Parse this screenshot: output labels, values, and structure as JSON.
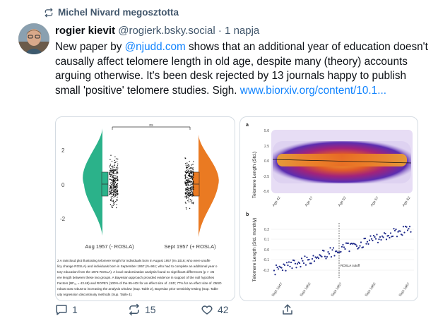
{
  "repost": {
    "icon": "repost-icon",
    "text": "Michel Nivard megosztotta"
  },
  "post": {
    "author_name": "rogier kievit",
    "handle": "@rogierk.bsky.social",
    "separator": "·",
    "time": "1 napja",
    "text_1": "New paper by ",
    "mention": "@njudd.com",
    "text_2": " shows that an additional year of education doesn't causally affect telomere length in old age, despite many (theory) accounts arguing otherwise. It's been desk rejected by 13 journals happy to publish small 'positive' telomere studies. Sigh. ",
    "link": "www.biorxiv.org/content/10.1..."
  },
  "left_figure": {
    "y_ticks": [
      "2",
      "0",
      "-2"
    ],
    "group_labels": [
      "Aug 1957 (- ROSLA)",
      "Sept 1957 (+ ROSLA)"
    ],
    "significance": "ns",
    "colors": {
      "left": "#2bb28a",
      "right": "#ea7a22"
    },
    "caption_lines": [
      "2 A raincloud plot illustrating telomere length for individuals born in August 1957 (N=1016; who were unaffe",
      "licy change ROSLA) and individuals born in September 1957 (N=961; who had to complete an additional year o",
      "tory education from the 1973 ROSLA). A local randomization analysis found no significant differences (p > .05",
      "ere length between these two groups. A Bayesian approach provided evidence in support of the null hypothes",
      "Factors (BF₀₁ = 43.48) and ROPE's (100% of the 95-HDI for an effect size of .1SD; 77% for an effect size of .05SD",
      "robust was robust to increasing the analysis window (Sup. Table 2), Bayesian prior sensitivity testing (Sup. Table",
      "uity regression discontinuity methods (Sup. Table 4)."
    ]
  },
  "right_figure": {
    "panel_a": {
      "label": "a",
      "ylabel": "Telomere Length (Std.)",
      "y_ticks": [
        "5.0",
        "2.5",
        "0.0",
        "-2.5",
        "-5.0"
      ],
      "x_ticks": [
        "Age 42",
        "Age 47",
        "Age 52",
        "Age 57",
        "Age 62"
      ]
    },
    "panel_b": {
      "label": "b",
      "ylabel": "Telomere Length (Std. monthly)",
      "y_ticks": [
        "0.2",
        "0.1",
        "0.0",
        "-0.1",
        "-0.2"
      ],
      "x_ticks": [
        "Sept 1947",
        "Sept 1952",
        "Sept 1957",
        "Sept 1962",
        "Sept 1967"
      ],
      "cutoff_label": "ROSLA cutoff"
    }
  },
  "actions": {
    "reply": {
      "icon": "reply-icon",
      "count": "1"
    },
    "repost": {
      "icon": "repost-icon",
      "count": "15"
    },
    "like": {
      "icon": "heart-icon",
      "count": "42"
    },
    "share": {
      "icon": "share-icon"
    }
  }
}
